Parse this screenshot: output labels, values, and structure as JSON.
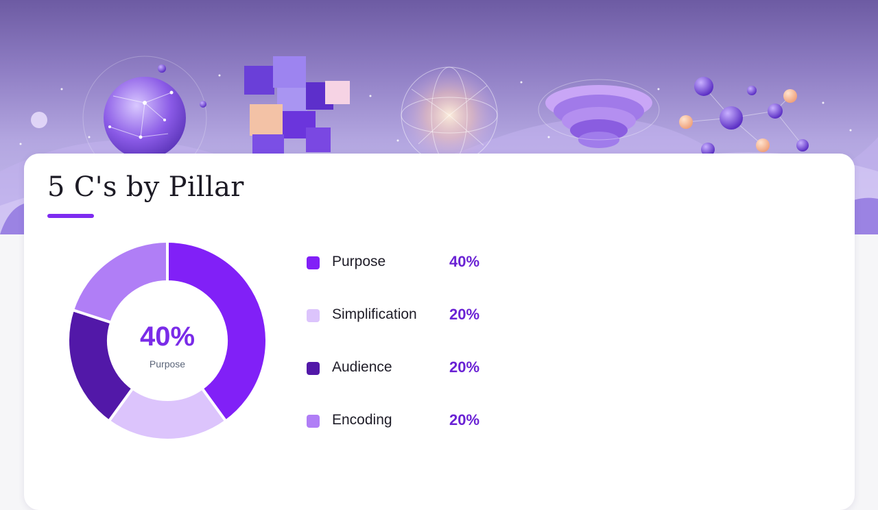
{
  "colors": {
    "accent": "#7e2bf0",
    "value_text": "#6a22d4",
    "center_value": "#7a2be8",
    "center_label": "#5a6478"
  },
  "header": {
    "title": "5 C's by Pillar"
  },
  "chart_data": {
    "type": "pie",
    "variant": "donut",
    "title": "5 C's by Pillar",
    "categories": [
      "Purpose",
      "Simplification",
      "Audience",
      "Encoding"
    ],
    "values": [
      40,
      20,
      20,
      20
    ],
    "value_labels": [
      "40%",
      "20%",
      "20%",
      "20%"
    ],
    "slice_colors": [
      "#8120f7",
      "#dcc4fc",
      "#5218a8",
      "#b07ef6"
    ],
    "legend": "right",
    "center": {
      "value": "40%",
      "label": "Purpose"
    }
  }
}
